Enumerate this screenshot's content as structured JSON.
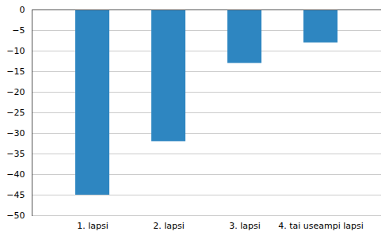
{
  "chart_data": {
    "type": "bar",
    "categories": [
      "1. lapsi",
      "2. lapsi",
      "3. lapsi",
      "4. tai useampi lapsi"
    ],
    "values": [
      -45,
      -32,
      -13,
      -8
    ],
    "color": "#2e86c1",
    "ylim": [
      -50,
      0
    ],
    "yticks": [
      0,
      -5,
      -10,
      -15,
      -20,
      -25,
      -30,
      -35,
      -40,
      -45,
      -50
    ],
    "grid": true
  }
}
